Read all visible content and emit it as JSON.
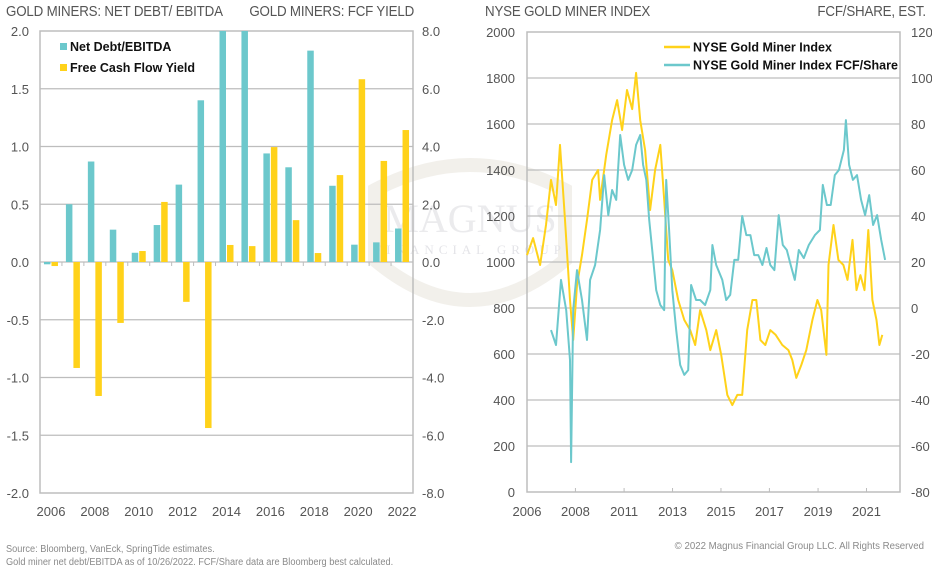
{
  "colors": {
    "teal": "#6CC8CC",
    "gold": "#FFD21A",
    "grid": "#BDBDBD",
    "axis_text": "#555555"
  },
  "left_panel": {
    "title_left": "GOLD MINERS: NET DEBT/ EBITDA",
    "title_right": "GOLD MINERS: FCF YIELD"
  },
  "right_panel": {
    "title_left": "NYSE GOLD MINER INDEX",
    "title_right": "FCF/SHARE, EST."
  },
  "footer": {
    "source_line1": "Source: Bloomberg, VanEck, SpringTide estimates.",
    "source_line2": "Gold miner net debt/EBITDA as of 10/26/2022. FCF/Share data are Bloomberg best calculated.",
    "copyright": "© 2022 Magnus Financial Group LLC. All Rights Reserved"
  },
  "watermark": {
    "line1": "MAGNUS",
    "line2": "FINANCIAL GROUP"
  },
  "chart_data": [
    {
      "type": "bar",
      "title": "Gold Miners: Net Debt/EBITDA vs FCF Yield",
      "categories": [
        "2006",
        "2007",
        "2008",
        "2009",
        "2010",
        "2011",
        "2012",
        "2013",
        "2014",
        "2015",
        "2016",
        "2017",
        "2018",
        "2019",
        "2020",
        "2021",
        "2022"
      ],
      "x_tick_labels": [
        "2006",
        "2008",
        "2010",
        "2012",
        "2014",
        "2016",
        "2018",
        "2020",
        "2022"
      ],
      "series": [
        {
          "name": "Net Debt/EBITDA",
          "axis": "left",
          "color": "#6CC8CC",
          "values": [
            -0.02,
            0.5,
            0.87,
            0.28,
            0.08,
            0.32,
            0.67,
            1.4,
            2.0,
            2.0,
            0.94,
            0.82,
            1.83,
            0.66,
            0.15,
            0.17,
            0.29
          ]
        },
        {
          "name": "Free Cash Flow Yield",
          "axis": "right",
          "color": "#FFD21A",
          "values": [
            -0.14,
            -3.67,
            -4.64,
            -2.11,
            0.38,
            2.08,
            -1.38,
            -5.75,
            0.59,
            0.55,
            3.98,
            1.45,
            0.31,
            3.01,
            6.33,
            3.5,
            4.57
          ]
        }
      ],
      "y_left": {
        "label": "GOLD MINERS: NET DEBT/ EBITDA",
        "range": [
          -2.0,
          2.0
        ],
        "ticks": [
          "2.0",
          "1.5",
          "1.0",
          "0.5",
          "0.0",
          "-0.5",
          "-1.0",
          "-1.5",
          "-2.0"
        ],
        "tick_values": [
          2.0,
          1.5,
          1.0,
          0.5,
          0.0,
          -0.5,
          -1.0,
          -1.5,
          -2.0
        ]
      },
      "y_right": {
        "label": "GOLD MINERS: FCF YIELD",
        "range": [
          -8.0,
          8.0
        ],
        "ticks": [
          "8.0",
          "6.0",
          "4.0",
          "2.0",
          "0.0",
          "-2.0",
          "-4.0",
          "-6.0",
          "-8.0"
        ],
        "tick_values": [
          8,
          6,
          4,
          2,
          0,
          -2,
          -4,
          -6,
          -8
        ]
      },
      "legend": {
        "placement": "top-left",
        "entries": [
          "Net Debt/EBITDA",
          "Free Cash Flow Yield"
        ]
      },
      "grid": true
    },
    {
      "type": "line",
      "title": "NYSE Gold Miner Index vs FCF/Share",
      "x_range": [
        2006.0,
        2022.48
      ],
      "x_tick_labels": [
        "2006",
        "2008",
        "2011",
        "2013",
        "2015",
        "2017",
        "2019",
        "2021"
      ],
      "x_tick_positions": [
        2006.0,
        2008.14,
        2010.29,
        2012.43,
        2014.57,
        2016.71,
        2018.86,
        2021.0
      ],
      "y_left": {
        "label": "NYSE GOLD MINER INDEX",
        "range": [
          0,
          2000
        ],
        "ticks": [
          "2000",
          "1800",
          "1600",
          "1400",
          "1200",
          "1000",
          "800",
          "600",
          "400",
          "200",
          "0"
        ],
        "tick_values": [
          2000,
          1800,
          1600,
          1400,
          1200,
          1000,
          800,
          600,
          400,
          200,
          0
        ]
      },
      "y_right": {
        "label": "FCF/SHARE, EST.",
        "range": [
          -80,
          120
        ],
        "ticks": [
          "120",
          "100",
          "80",
          "60",
          "40",
          "20",
          "0",
          "-20",
          "-40",
          "-60",
          "-80"
        ],
        "tick_values": [
          120,
          100,
          80,
          60,
          40,
          20,
          0,
          -20,
          -40,
          -60,
          -80
        ]
      },
      "legend": {
        "placement": "top-right",
        "entries": [
          "NYSE Gold Miner Index",
          "NYSE Gold Miner Index FCF/Share"
        ]
      },
      "grid": true,
      "series": [
        {
          "name": "NYSE Gold Miner Index",
          "axis": "left",
          "color": "#FFD21A",
          "x": [
            2006.0,
            2006.27,
            2006.58,
            2006.84,
            2007.06,
            2007.28,
            2007.46,
            2007.68,
            2007.9,
            2008.04,
            2008.21,
            2008.43,
            2008.65,
            2008.88,
            2009.14,
            2009.23,
            2009.5,
            2009.76,
            2009.98,
            2010.2,
            2010.42,
            2010.65,
            2010.82,
            2011.0,
            2011.22,
            2011.44,
            2011.66,
            2011.89,
            2012.06,
            2012.24,
            2012.42,
            2012.68,
            2012.95,
            2013.21,
            2013.43,
            2013.65,
            2013.92,
            2014.1,
            2014.36,
            2014.58,
            2014.85,
            2015.07,
            2015.29,
            2015.51,
            2015.73,
            2015.96,
            2016.13,
            2016.31,
            2016.53,
            2016.75,
            2016.99,
            2017.28,
            2017.55,
            2017.72,
            2017.9,
            2018.12,
            2018.34,
            2018.61,
            2018.83,
            2019.0,
            2019.23,
            2019.32,
            2019.54,
            2019.76,
            2019.98,
            2020.16,
            2020.38,
            2020.56,
            2020.73,
            2020.91,
            2021.08,
            2021.26,
            2021.44,
            2021.57,
            2021.7
          ],
          "y": [
            1030,
            1104,
            987,
            1161,
            1357,
            1248,
            1509,
            1183,
            835,
            661,
            900,
            1030,
            1183,
            1357,
            1400,
            1270,
            1465,
            1617,
            1704,
            1574,
            1748,
            1665,
            1822,
            1617,
            1487,
            1226,
            1400,
            1509,
            1270,
            1009,
            965,
            835,
            748,
            704,
            639,
            791,
            704,
            617,
            704,
            596,
            422,
            378,
            422,
            422,
            704,
            835,
            835,
            661,
            639,
            704,
            683,
            639,
            617,
            574,
            496,
            552,
            617,
            748,
            835,
            791,
            596,
            987,
            1161,
            1009,
            987,
            922,
            1096,
            878,
            943,
            878,
            1139,
            835,
            748,
            639,
            683
          ]
        },
        {
          "name": "NYSE Gold Miner Index FCF/Share",
          "axis": "right",
          "color": "#6CC8CC",
          "x": [
            2007.06,
            2007.28,
            2007.5,
            2007.73,
            2007.9,
            2007.95,
            2008.04,
            2008.21,
            2008.43,
            2008.65,
            2008.79,
            2009.01,
            2009.23,
            2009.41,
            2009.59,
            2009.76,
            2009.94,
            2010.12,
            2010.29,
            2010.47,
            2010.65,
            2010.82,
            2011.0,
            2011.13,
            2011.27,
            2011.4,
            2011.53,
            2011.71,
            2011.89,
            2012.06,
            2012.15,
            2012.28,
            2012.42,
            2012.59,
            2012.77,
            2012.95,
            2013.12,
            2013.25,
            2013.47,
            2013.65,
            2013.87,
            2014.1,
            2014.19,
            2014.36,
            2014.63,
            2014.8,
            2014.98,
            2015.16,
            2015.33,
            2015.51,
            2015.69,
            2015.87,
            2016.04,
            2016.22,
            2016.4,
            2016.58,
            2016.75,
            2016.93,
            2017.12,
            2017.3,
            2017.48,
            2017.65,
            2017.83,
            2018.01,
            2018.23,
            2018.45,
            2018.72,
            2018.94,
            2019.07,
            2019.25,
            2019.42,
            2019.6,
            2019.78,
            2020.0,
            2020.09,
            2020.23,
            2020.4,
            2020.58,
            2020.76,
            2020.94,
            2021.12,
            2021.29,
            2021.47,
            2021.65,
            2021.82
          ],
          "y": [
            -9.6,
            -16.1,
            12.2,
            -0.9,
            -22.6,
            -67.0,
            -0.9,
            16.5,
            3.5,
            -13.9,
            12.2,
            18.7,
            33.9,
            57.8,
            40.4,
            51.3,
            47.0,
            75.2,
            62.2,
            55.7,
            60.0,
            70.9,
            75.2,
            62.2,
            55.7,
            38.3,
            25.2,
            7.8,
            1.3,
            -0.9,
            55.7,
            33.9,
            7.8,
            -9.6,
            -24.8,
            -29.1,
            -27.0,
            10.0,
            3.5,
            3.5,
            1.3,
            7.8,
            27.4,
            18.7,
            12.2,
            3.5,
            5.7,
            20.9,
            20.9,
            40.0,
            31.7,
            31.7,
            23.0,
            23.0,
            18.7,
            26.1,
            18.7,
            16.5,
            40.4,
            27.4,
            25.2,
            18.7,
            12.2,
            25.2,
            21.7,
            27.4,
            31.7,
            33.9,
            53.5,
            44.8,
            44.8,
            57.8,
            60.0,
            68.7,
            81.7,
            62.2,
            55.7,
            57.8,
            47.0,
            40.4,
            49.1,
            36.1,
            40.4,
            29.6,
            20.9
          ]
        }
      ]
    }
  ]
}
